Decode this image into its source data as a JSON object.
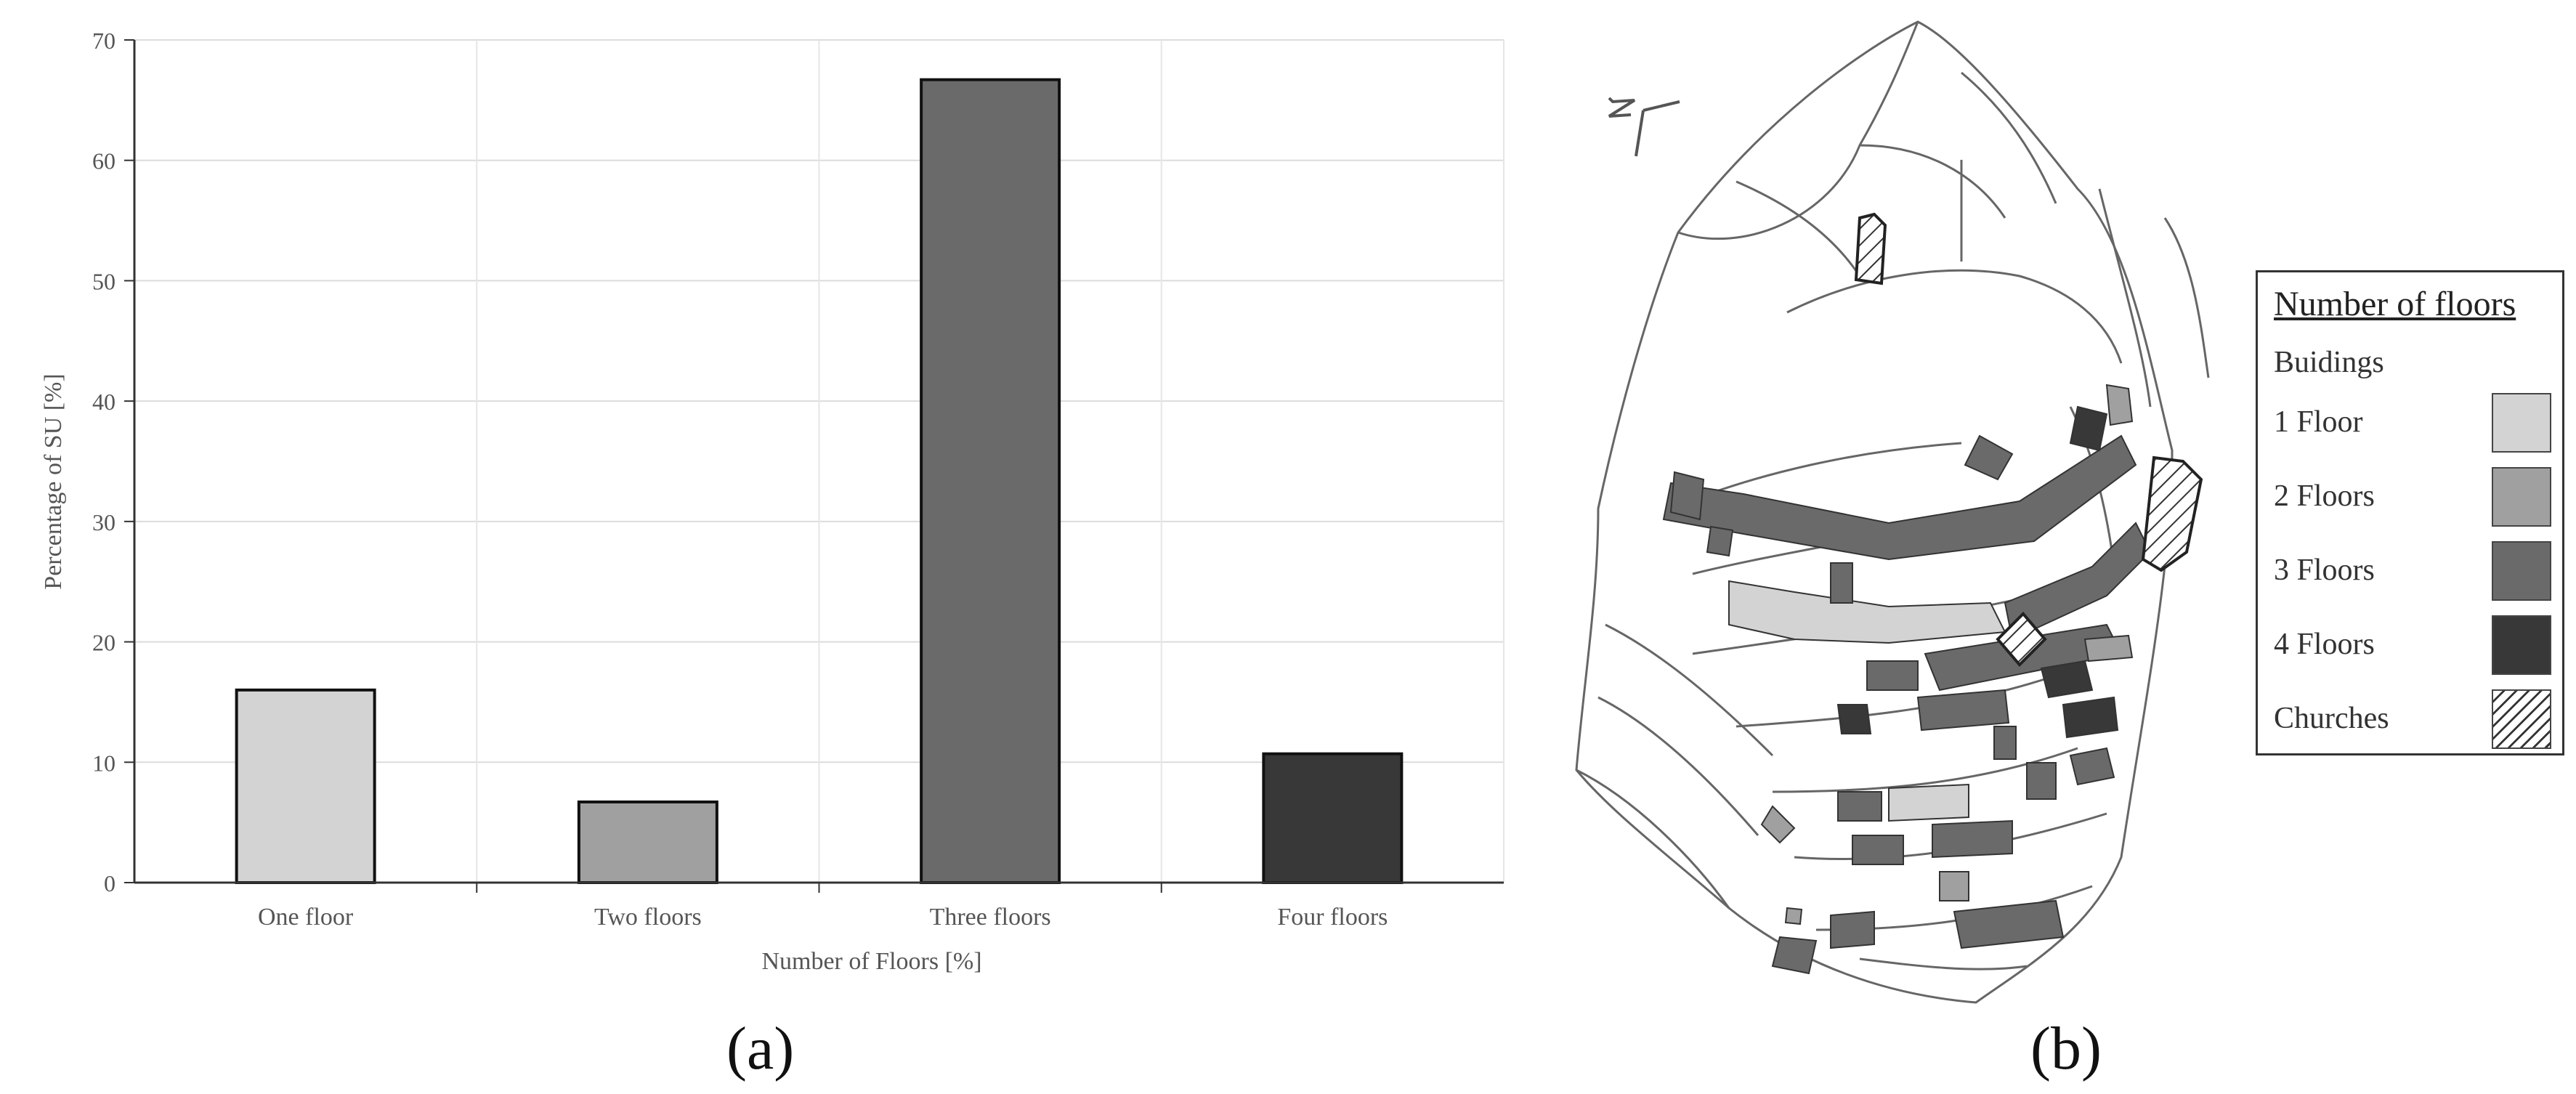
{
  "chart_data": {
    "type": "bar",
    "categories": [
      "One floor",
      "Two floors",
      "Three floors",
      "Four floors"
    ],
    "values": [
      16.0,
      6.7,
      66.7,
      10.7
    ],
    "colors": [
      "#d3d3d3",
      "#a0a0a0",
      "#6a6a6a",
      "#383838"
    ],
    "xlabel": "Number of Floors [%]",
    "ylabel": "Percentage of SU [%]",
    "ylim": [
      0,
      70
    ],
    "yticks": [
      0,
      10,
      20,
      30,
      40,
      50,
      60,
      70
    ],
    "grid": true
  },
  "panel_labels": {
    "a": "(a)",
    "b": "(b)"
  },
  "map": {
    "legend": {
      "title": "Number of floors",
      "subtitle": "Buidings",
      "items": [
        {
          "label": "1 Floor",
          "color": "#d3d3d3"
        },
        {
          "label": "2 Floors",
          "color": "#a0a0a0"
        },
        {
          "label": "3 Floors",
          "color": "#6a6a6a"
        },
        {
          "label": "4 Floors",
          "color": "#383838"
        },
        {
          "label": "Churches",
          "pattern": "hatch"
        }
      ]
    },
    "north_arrow_label": "N"
  }
}
